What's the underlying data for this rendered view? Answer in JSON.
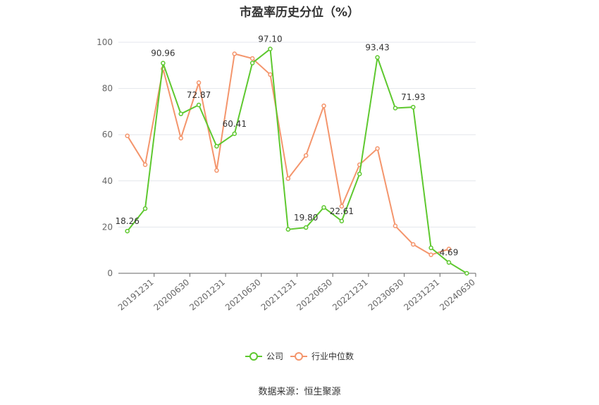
{
  "chart_data": {
    "type": "line",
    "title": "市盈率历史分位（%）",
    "source": "数据来源：恒生聚源",
    "y_ticks": [
      "0",
      "20",
      "40",
      "60",
      "80",
      "100"
    ],
    "ylim": [
      0,
      100
    ],
    "x_tick_labels": [
      "20191231",
      "20200630",
      "20201231",
      "20210630",
      "20211231",
      "20220630",
      "20221231",
      "20230630",
      "20231231",
      "20240630"
    ],
    "n_points": 20,
    "grid": true,
    "legend_position": "bottom",
    "series": [
      {
        "name": "公司",
        "color": "#5ec82f",
        "values": [
          18.26,
          28.0,
          90.96,
          69.0,
          72.87,
          55.0,
          60.41,
          91.0,
          97.1,
          19.0,
          19.8,
          28.5,
          22.61,
          43.0,
          93.43,
          71.5,
          71.93,
          11.0,
          4.69,
          0.0
        ],
        "labels": {
          "0": "18.26",
          "2": "90.96",
          "4": "72.87",
          "6": "60.41",
          "8": "97.10",
          "10": "19.80",
          "12": "22.61",
          "14": "93.43",
          "16": "71.93",
          "18": "4.69"
        }
      },
      {
        "name": "行业中位数",
        "color": "#f4956c",
        "values": [
          59.5,
          47.0,
          88.5,
          58.5,
          82.5,
          44.5,
          95.0,
          93.0,
          86.0,
          41.0,
          51.0,
          72.5,
          29.0,
          47.0,
          54.0,
          20.5,
          12.5,
          8.0,
          10.5,
          null
        ]
      }
    ]
  }
}
